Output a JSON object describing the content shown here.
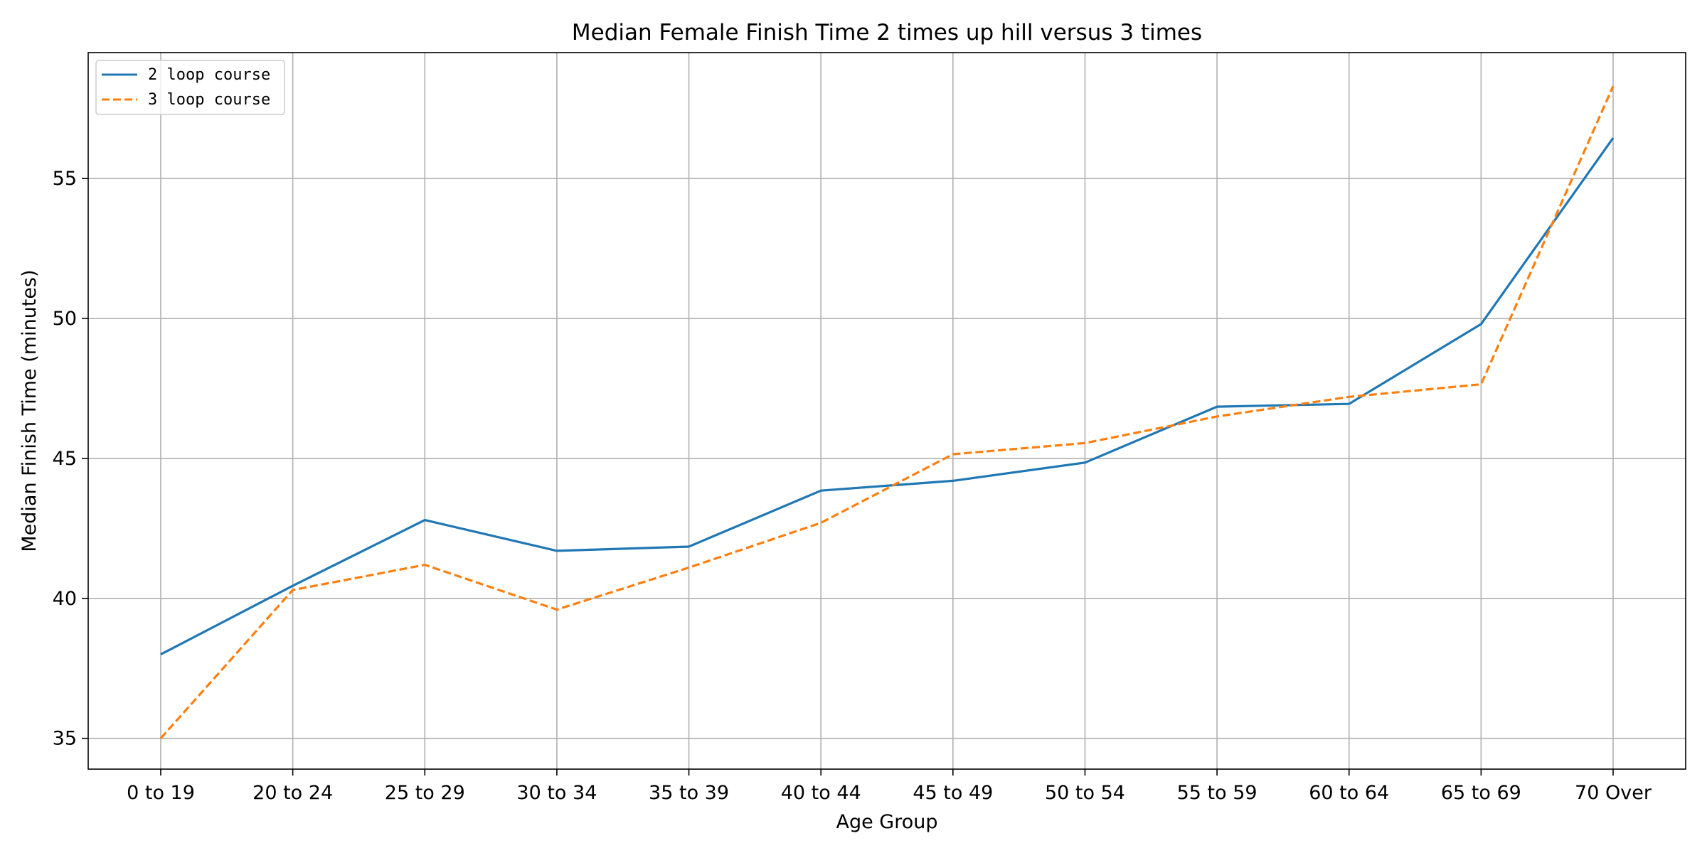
{
  "chart_data": {
    "type": "line",
    "title": "Median Female Finish Time 2 times up hill versus 3 times",
    "xlabel": "Age Group",
    "ylabel": "Median Finish Time (minutes)",
    "categories": [
      "0 to 19",
      "20 to 24",
      "25 to 29",
      "30 to 34",
      "35 to 39",
      "40 to 44",
      "45 to 49",
      "50 to 54",
      "55 to 59",
      "60 to 64",
      "65 to 69",
      "70 Over"
    ],
    "ylim": [
      33.9,
      59.5
    ],
    "yticks": [
      35,
      40,
      45,
      50,
      55
    ],
    "grid": true,
    "legend_position": "top-left",
    "series": [
      {
        "name": "2 loop course",
        "color": "#1f77b4",
        "style": "solid",
        "values": [
          38.0,
          40.45,
          42.8,
          41.7,
          41.85,
          43.85,
          44.2,
          44.85,
          46.85,
          46.95,
          49.8,
          56.45
        ]
      },
      {
        "name": "3 loop course",
        "color": "#ff7f0e",
        "style": "dashed",
        "values": [
          35.0,
          40.3,
          41.2,
          39.6,
          41.1,
          42.7,
          45.15,
          45.55,
          46.5,
          47.2,
          47.65,
          58.3
        ]
      }
    ]
  }
}
